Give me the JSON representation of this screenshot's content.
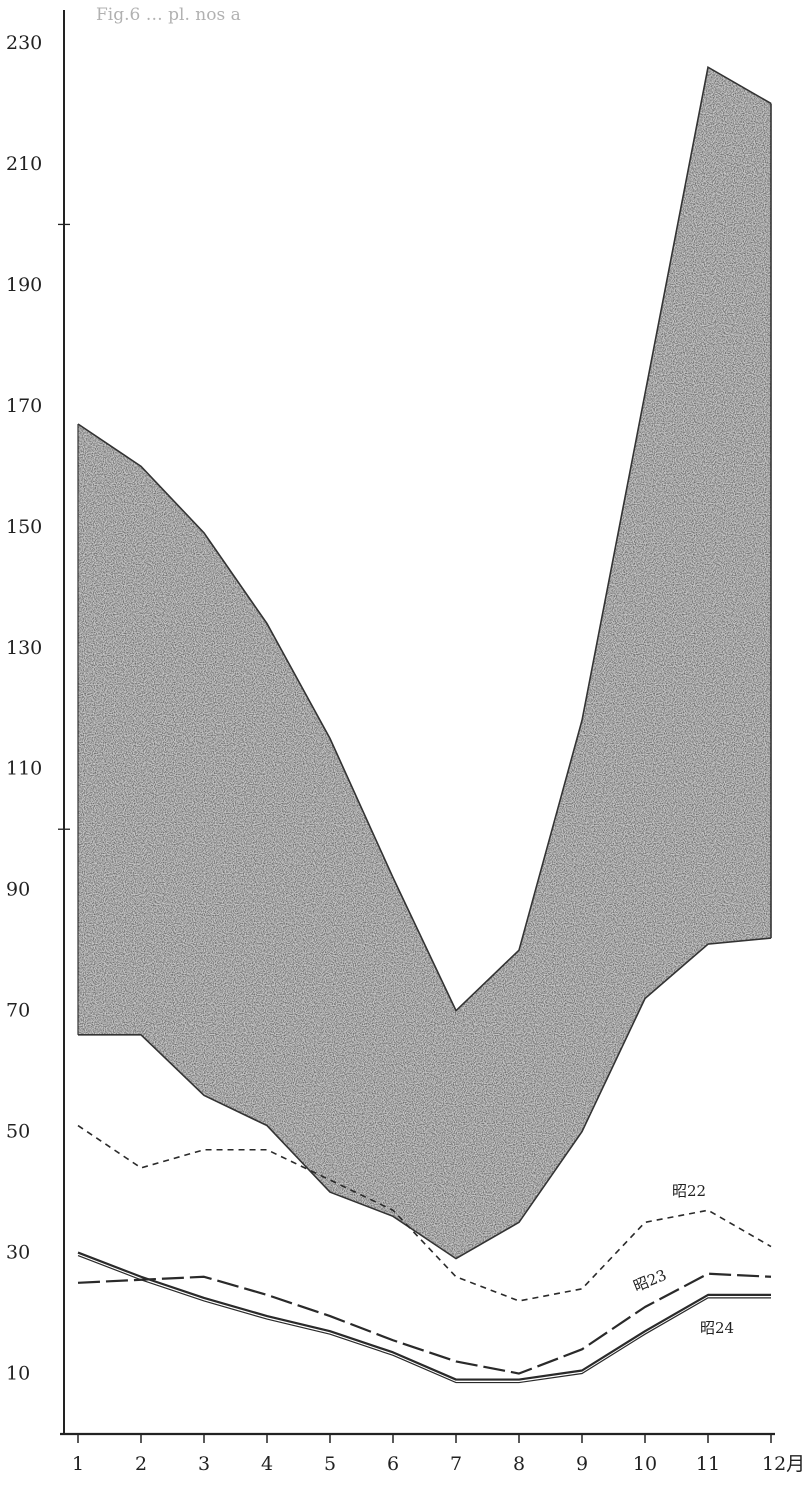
{
  "header": {
    "text": "Fig.6 … pl. nos a"
  },
  "chart_data": {
    "type": "area",
    "title": "",
    "xlabel": "",
    "ylabel": "",
    "x_unit_suffix": "月",
    "x": [
      1,
      2,
      3,
      4,
      5,
      6,
      7,
      8,
      9,
      10,
      11,
      12
    ],
    "x_tick_labels": [
      "1",
      "2",
      "3",
      "4",
      "5",
      "6",
      "7",
      "8",
      "9",
      "10",
      "11",
      "12月"
    ],
    "y_tick_labels": [
      "10",
      "30",
      "50",
      "70",
      "90",
      "110",
      "130",
      "150",
      "170",
      "190",
      "210",
      "230"
    ],
    "ylim": [
      0,
      230
    ],
    "grid": false,
    "band": {
      "upper": [
        167,
        160,
        149,
        134,
        115,
        92,
        70,
        80,
        118,
        172,
        226,
        220
      ],
      "lower": [
        66,
        66,
        56,
        51,
        40,
        36,
        29,
        35,
        50,
        72,
        81,
        82
      ]
    },
    "series": [
      {
        "name": "昭22",
        "style": "dashed",
        "values": [
          51,
          44,
          47,
          47,
          42,
          37,
          26,
          22,
          24,
          35,
          37,
          31
        ]
      },
      {
        "name": "昭23",
        "style": "long-dash",
        "values": [
          25,
          25.5,
          26,
          23,
          19.5,
          15.5,
          12,
          10,
          14,
          21,
          26.5,
          26
        ]
      },
      {
        "name": "昭24",
        "style": "solid",
        "values": [
          30,
          26,
          22.5,
          19.5,
          17,
          13.5,
          9,
          9,
          10.5,
          17,
          23,
          23
        ]
      }
    ]
  }
}
